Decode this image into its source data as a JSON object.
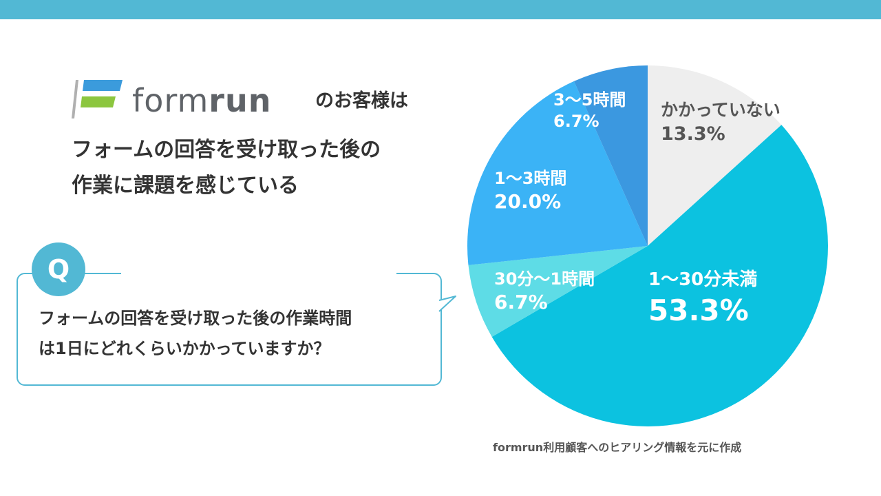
{
  "header": {
    "brand_word_light": "form",
    "brand_word_bold": "run",
    "brand_suffix": "のお客様は",
    "headline_line1": "フォームの回答を受け取った後の",
    "headline_line2": "作業に課題を感じている"
  },
  "question": {
    "badge": "Q",
    "line1": "フォームの回答を受け取った後の作業時間",
    "line2": "は1日にどれくらいかかっていますか？"
  },
  "chart_data": {
    "type": "pie",
    "slices": [
      {
        "label": "かかっていない",
        "value": 13.3,
        "display": "13.3%",
        "color": "#eeeeee"
      },
      {
        "label": "1〜30分未満",
        "value": 53.3,
        "display": "53.3%",
        "color": "#0cc2e0"
      },
      {
        "label": "30分〜1時間",
        "value": 6.7,
        "display": "6.7%",
        "color": "#5edce6"
      },
      {
        "label": "1〜3時間",
        "value": 20.0,
        "display": "20.0%",
        "color": "#3bb3f6"
      },
      {
        "label": "3〜5時間",
        "value": 6.7,
        "display": "6.7%",
        "color": "#3b98e0"
      }
    ]
  },
  "footer": {
    "source": "formrun利用顧客へのヒアリング情報を元に作成"
  },
  "colors": {
    "accent": "#52b8d4",
    "logo_blue": "#3b9bdc",
    "logo_green": "#8cc63f"
  }
}
